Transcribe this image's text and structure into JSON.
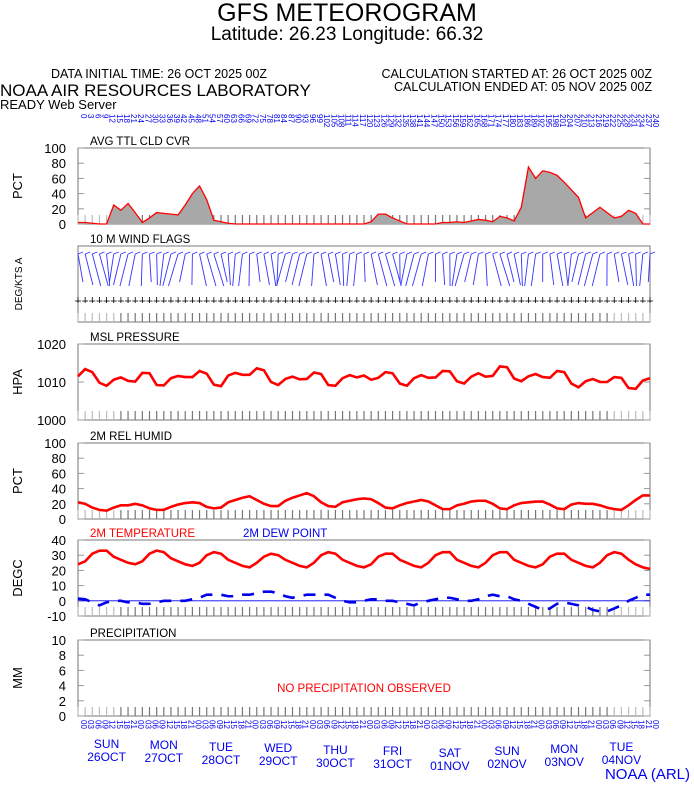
{
  "header": {
    "title": "GFS METEOROGRAM",
    "subtitle": "Latitude: 26.23 Longitude:  66.32",
    "data_initial_time": "DATA INITIAL TIME: 26 OCT 2025 00Z",
    "calc_started": "CALCULATION STARTED AT: 26 OCT 2025 00Z",
    "calc_ended": "CALCULATION ENDED AT: 05 NOV 2025 00Z",
    "lab": "NOAA AIR RESOURCES LABORATORY",
    "server": "READY Web Server",
    "footer": "NOAA (ARL)"
  },
  "colors": {
    "red": "#ff0000",
    "blue": "#0000ee",
    "gray_fill": "#a8a8a8",
    "wind_blue": "#3333ff"
  },
  "chart_data": [
    {
      "type": "area",
      "title": "AVG TTL CLD CVR",
      "ylabel": "PCT",
      "ylim": [
        0,
        100
      ],
      "yticks": [
        "0",
        "20",
        "40",
        "60",
        "80",
        "100"
      ],
      "x_hours_step": 3,
      "values": [
        2,
        2,
        1,
        0,
        0,
        25,
        18,
        27,
        15,
        2,
        8,
        15,
        14,
        13,
        12,
        25,
        40,
        50,
        32,
        5,
        3,
        1,
        0,
        0,
        0,
        0,
        0,
        0,
        0,
        0,
        0,
        0,
        0,
        0,
        0,
        0,
        0,
        0,
        0,
        0,
        0,
        3,
        13,
        13,
        8,
        4,
        0,
        0,
        0,
        0,
        0,
        2,
        2,
        3,
        2,
        4,
        6,
        5,
        3,
        10,
        8,
        4,
        22,
        75,
        60,
        70,
        68,
        64,
        55,
        45,
        35,
        8,
        15,
        22,
        15,
        8,
        10,
        18,
        14,
        0,
        0
      ]
    },
    {
      "type": "wind",
      "title": "10 M  WIND FLAGS",
      "ylabel": "DEG/KTS  A"
    },
    {
      "type": "line",
      "title": "MSL PRESSURE",
      "ylabel": "HPA",
      "ylim": [
        1000,
        1020
      ],
      "yticks": [
        "1000",
        "1010",
        "1020"
      ],
      "values": [
        1011.5,
        1013.4,
        1012.6,
        1009.8,
        1009,
        1010.6,
        1011.2,
        1010.3,
        1010.1,
        1012.4,
        1012.3,
        1009.2,
        1009.1,
        1011,
        1011.6,
        1011.3,
        1011.3,
        1012.9,
        1012.2,
        1009.3,
        1008.9,
        1011.7,
        1012.4,
        1011.9,
        1011.9,
        1013.6,
        1013.1,
        1010,
        1009.2,
        1010.8,
        1011.4,
        1010.7,
        1010.8,
        1012.5,
        1012.1,
        1009.2,
        1009,
        1011,
        1011.8,
        1011.2,
        1011.7,
        1010.6,
        1011.1,
        1012.6,
        1012.3,
        1009.6,
        1009,
        1011,
        1011.8,
        1011.1,
        1011.2,
        1012.9,
        1012.8,
        1010.2,
        1009.6,
        1011.4,
        1012.3,
        1011.4,
        1011.6,
        1014.1,
        1013.9,
        1010.9,
        1010.2,
        1011.5,
        1012.1,
        1011.3,
        1011.1,
        1012.9,
        1012.6,
        1009.6,
        1008.6,
        1010.2,
        1010.8,
        1010,
        1010,
        1011.3,
        1011.1,
        1008.4,
        1008.2,
        1010.4,
        1011
      ]
    },
    {
      "type": "line",
      "title": "2M REL HUMID",
      "ylabel": "PCT",
      "ylim": [
        0,
        100
      ],
      "yticks": [
        "0",
        "20",
        "40",
        "60",
        "80",
        "100"
      ],
      "values": [
        22,
        20,
        15,
        12,
        11,
        15,
        18,
        18,
        20,
        18,
        14,
        12,
        12,
        16,
        19,
        21,
        22,
        21,
        16,
        14,
        15,
        22,
        25,
        28,
        30,
        25,
        20,
        17,
        17,
        24,
        28,
        31,
        34,
        30,
        22,
        17,
        16,
        22,
        24,
        26,
        27,
        26,
        21,
        15,
        14,
        18,
        21,
        23,
        25,
        23,
        18,
        13,
        13,
        18,
        20,
        23,
        24,
        24,
        20,
        14,
        13,
        18,
        21,
        22,
        23,
        23,
        19,
        14,
        13,
        19,
        21,
        20,
        20,
        18,
        15,
        13,
        12,
        18,
        25,
        31,
        31
      ]
    },
    {
      "type": "line",
      "title": "2M TEMPERATURE",
      "title2": "2M   DEW POINT",
      "ylabel": "DEGC",
      "ylim": [
        -10,
        40
      ],
      "yticks": [
        "-10",
        "0",
        "10",
        "20",
        "30",
        "40"
      ],
      "series": [
        {
          "name": "2M TEMPERATURE",
          "values": [
            24,
            26,
            31,
            33,
            33,
            29,
            27,
            25,
            24,
            26,
            31,
            33,
            32,
            28,
            26,
            24,
            23,
            25,
            30,
            32,
            31,
            27,
            25,
            23,
            22,
            25,
            29,
            31,
            30,
            27,
            25,
            23,
            22,
            25,
            30,
            32,
            31,
            27,
            25,
            23,
            22,
            24,
            29,
            31,
            31,
            27,
            25,
            23,
            22,
            25,
            30,
            32,
            32,
            27,
            25,
            23,
            22,
            25,
            30,
            32,
            32,
            27,
            25,
            23,
            22,
            24,
            29,
            31,
            31,
            27,
            25,
            23,
            22,
            25,
            30,
            32,
            31,
            27,
            24,
            22,
            21
          ]
        },
        {
          "name": "2M   DEW POINT",
          "values": [
            1.5,
            1,
            -1,
            -3,
            -1,
            0,
            0,
            -1,
            -1,
            -2,
            -2,
            -1,
            0,
            0,
            0,
            0,
            1,
            2,
            4,
            4,
            4,
            3,
            3,
            4,
            4,
            5,
            6,
            6,
            5,
            3,
            2,
            3,
            4,
            4,
            4,
            4,
            2,
            0,
            -1,
            -1,
            0,
            1,
            1,
            0,
            0,
            -1,
            -2,
            -3,
            -1,
            0,
            1,
            2,
            2,
            1,
            0,
            0,
            1,
            3,
            4,
            3,
            3,
            1,
            0,
            -2,
            -4,
            -6,
            -5,
            -2,
            -1,
            -2,
            -3,
            -4,
            -6,
            -7,
            -7,
            -5,
            -3,
            0,
            2,
            4,
            4
          ]
        }
      ]
    },
    {
      "type": "bar",
      "title": "PRECIPITATION",
      "ylabel": "MM",
      "ylim": [
        0,
        10
      ],
      "yticks": [
        "0",
        "2",
        "4",
        "6",
        "8",
        "10"
      ],
      "annotation": "NO PRECIPITATION OBSERVED",
      "values": []
    }
  ],
  "top_axis_hours": [
    "0",
    "3",
    "6",
    "9",
    "12",
    "15",
    "18",
    "21",
    "24",
    "27",
    "30",
    "33",
    "36",
    "39",
    "42",
    "45",
    "48",
    "51",
    "54",
    "57",
    "60",
    "63",
    "66",
    "69",
    "72",
    "75",
    "78",
    "81",
    "84",
    "87",
    "90",
    "93",
    "96",
    "99",
    "102",
    "105",
    "108",
    "111",
    "114",
    "117",
    "120",
    "123",
    "126",
    "129",
    "132",
    "135",
    "138",
    "141",
    "144",
    "147",
    "150",
    "153",
    "156",
    "159",
    "162",
    "165",
    "168",
    "171",
    "174",
    "177",
    "180",
    "183",
    "186",
    "189",
    "192",
    "195",
    "198",
    "201",
    "204",
    "207",
    "210",
    "213",
    "216",
    "219",
    "222",
    "225",
    "228",
    "231",
    "234",
    "237",
    "240"
  ],
  "bottom_axis_hours": [
    "00",
    "03",
    "06",
    "09",
    "12",
    "15",
    "18",
    "21"
  ],
  "days": [
    {
      "dow": "SUN",
      "date": "26OCT"
    },
    {
      "dow": "MON",
      "date": "27OCT"
    },
    {
      "dow": "TUE",
      "date": "28OCT"
    },
    {
      "dow": "WED",
      "date": "29OCT"
    },
    {
      "dow": "THU",
      "date": "30OCT"
    },
    {
      "dow": "FRI",
      "date": "31OCT"
    },
    {
      "dow": "SAT",
      "date": "01NOV"
    },
    {
      "dow": "SUN",
      "date": "02NOV"
    },
    {
      "dow": "MON",
      "date": "03NOV"
    },
    {
      "dow": "TUE",
      "date": "04NOV"
    }
  ]
}
